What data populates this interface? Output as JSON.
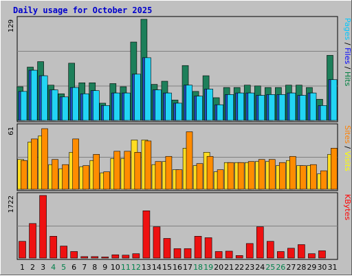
{
  "chart_data": {
    "type": "bar",
    "title": "Daily usage for October 2025",
    "categories": [
      "1",
      "2",
      "3",
      "4",
      "5",
      "6",
      "7",
      "8",
      "9",
      "10",
      "11",
      "12",
      "13",
      "14",
      "15",
      "16",
      "17",
      "18",
      "19",
      "20",
      "21",
      "22",
      "23",
      "24",
      "25",
      "26",
      "27",
      "28",
      "29",
      "30",
      "31"
    ],
    "weekend_days": [
      "4",
      "5",
      "11",
      "12",
      "18",
      "19",
      "25",
      "26"
    ],
    "panels": [
      {
        "id": "hits-pages-files",
        "ymax_label": "129",
        "ylim": [
          0,
          129
        ],
        "right_label": [
          {
            "text": "Pages",
            "color": "#00c8ff"
          },
          {
            "text": " / ",
            "color": "#000000"
          },
          {
            "text": "Files",
            "color": "#0000ff"
          },
          {
            "text": " / ",
            "color": "#000000"
          },
          {
            "text": "Hits",
            "color": "#008040"
          }
        ],
        "series": [
          {
            "name": "Hits",
            "color": "#1d7f5a",
            "values": [
              43,
              68,
              75,
              45,
              34,
              73,
              48,
              48,
              22,
              47,
              43,
              100,
              129,
              46,
              50,
              26,
              70,
              37,
              57,
              29,
              42,
              42,
              45,
              44,
              42,
              42,
              45,
              45,
              42,
              27,
              83
            ]
          },
          {
            "name": "Files",
            "color": "#2050c0",
            "values": [
              37,
              64,
              57,
              39,
              30,
              42,
              34,
              38,
              19,
              35,
              35,
              59,
              80,
              39,
              35,
              22,
              45,
              31,
              40,
              20,
              33,
              35,
              35,
              32,
              33,
              33,
              35,
              32,
              35,
              19,
              52
            ]
          },
          {
            "name": "Pages",
            "color": "#22d4f4",
            "values": [
              37,
              64,
              57,
              39,
              30,
              42,
              34,
              38,
              19,
              35,
              35,
              59,
              80,
              39,
              35,
              22,
              45,
              31,
              40,
              20,
              33,
              35,
              35,
              32,
              33,
              33,
              35,
              32,
              35,
              19,
              52
            ]
          },
          {
            "name": "Pages",
            "color": "#22d4f4",
            "values": [
              37,
              64,
              57,
              39,
              30,
              42,
              34,
              38,
              19,
              35,
              35,
              59,
              80,
              39,
              35,
              22,
              45,
              31,
              40,
              20,
              33,
              35,
              35,
              32,
              33,
              33,
              35,
              32,
              35,
              19,
              52
            ]
          }
        ]
      },
      {
        "id": "visits-sites",
        "ymax_label": "61",
        "ylim": [
          0,
          61
        ],
        "right_label": [
          {
            "text": "Sites",
            "color": "#ff8000"
          },
          {
            "text": " / ",
            "color": "#000000"
          },
          {
            "text": "Visits",
            "color": "#ffff00"
          }
        ],
        "series": [
          {
            "name": "Visits",
            "color": "#ffdd22",
            "values": [
              29,
              46,
              52,
              24,
              20,
              36,
              22,
              28,
              16,
              30,
              30,
              48,
              48,
              24,
              27,
              19,
              40,
              23,
              36,
              17,
              26,
              26,
              26,
              27,
              27,
              23,
              28,
              23,
              23,
              15,
              34
            ]
          },
          {
            "name": "Sites",
            "color": "#ff8c00",
            "values": [
              28,
              49,
              59,
              29,
              24,
              49,
              23,
              34,
              17,
              37,
              37,
              36,
              47,
              27,
              32,
              19,
              56,
              25,
              32,
              19,
              26,
              26,
              27,
              29,
              29,
              26,
              32,
              23,
              24,
              18,
              40
            ]
          }
        ]
      },
      {
        "id": "kbytes",
        "ymax_label": "1722",
        "ylim": [
          0,
          1722
        ],
        "right_label": [
          {
            "text": "KBytes",
            "color": "#ff0000"
          }
        ],
        "series": [
          {
            "name": "KBytes",
            "color": "#ee1111",
            "values": [
              460,
              950,
              1722,
              600,
              330,
              180,
              40,
              40,
              30,
              90,
              80,
              120,
              1300,
              860,
              540,
              260,
              260,
              600,
              560,
              180,
              190,
              70,
              400,
              860,
              460,
              180,
              270,
              370,
              120,
              200,
              0
            ]
          }
        ]
      }
    ]
  }
}
